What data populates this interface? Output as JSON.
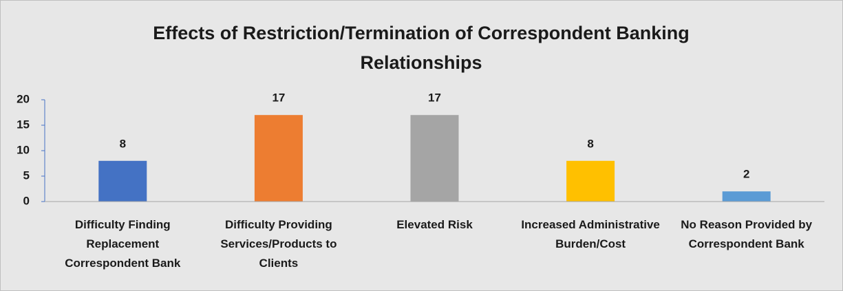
{
  "chart_data": {
    "type": "bar",
    "title": "Effects of Restriction/Termination of Correspondent Banking Relationships",
    "categories": [
      "Difficulty Finding Replacement Correspondent Bank",
      "Difficulty Providing Services/Products to Clients",
      "Elevated Risk",
      "Increased Administrative Burden/Cost",
      "No Reason Provided by Correspondent Bank"
    ],
    "values": [
      8,
      17,
      17,
      8,
      2
    ],
    "colors": [
      "#4472c4",
      "#ed7d31",
      "#a5a5a5",
      "#ffc000",
      "#5b9bd5"
    ],
    "ylim": [
      0,
      20
    ],
    "yticks": [
      0,
      5,
      10,
      15,
      20
    ],
    "grid": false
  }
}
